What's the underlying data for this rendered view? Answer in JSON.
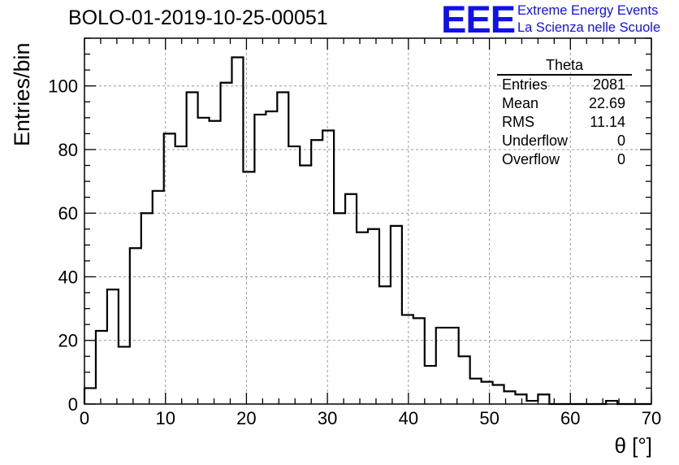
{
  "header": {
    "title": "BOLO-01-2019-10-25-00051",
    "logo_text": "EEE",
    "logo_line1": "Extreme Energy Events",
    "logo_line2": "La Scienza nelle Scuole"
  },
  "stats": {
    "title": "Theta",
    "rows": [
      {
        "label": "Entries",
        "value": "2081"
      },
      {
        "label": "Mean",
        "value": "22.69"
      },
      {
        "label": "RMS",
        "value": "11.14"
      },
      {
        "label": "Underflow",
        "value": "0"
      },
      {
        "label": "Overflow",
        "value": "0"
      }
    ]
  },
  "colors": {
    "logo": "#1010ee",
    "line": "#000000",
    "grid": "#999999"
  },
  "chart_data": {
    "type": "histogram",
    "title": "BOLO-01-2019-10-25-00051",
    "xlabel": "θ [°]",
    "ylabel": "Entries/bin",
    "xlim": [
      0,
      70
    ],
    "ylim": [
      0,
      115
    ],
    "x_ticks": [
      0,
      10,
      20,
      30,
      40,
      50,
      60,
      70
    ],
    "y_ticks": [
      0,
      20,
      40,
      60,
      80,
      100
    ],
    "grid": true,
    "bin_width": 1.4,
    "bin_edges_start": 0,
    "values": [
      5,
      23,
      36,
      18,
      49,
      60,
      67,
      85,
      81,
      98,
      90,
      89,
      101,
      109,
      73,
      91,
      92,
      98,
      81,
      75,
      83,
      86,
      60,
      66,
      54,
      55,
      37,
      56,
      28,
      27,
      12,
      24,
      24,
      15,
      8,
      7,
      6,
      4,
      3,
      1,
      3,
      0,
      0,
      0,
      0,
      0,
      1,
      0,
      0,
      0
    ]
  }
}
